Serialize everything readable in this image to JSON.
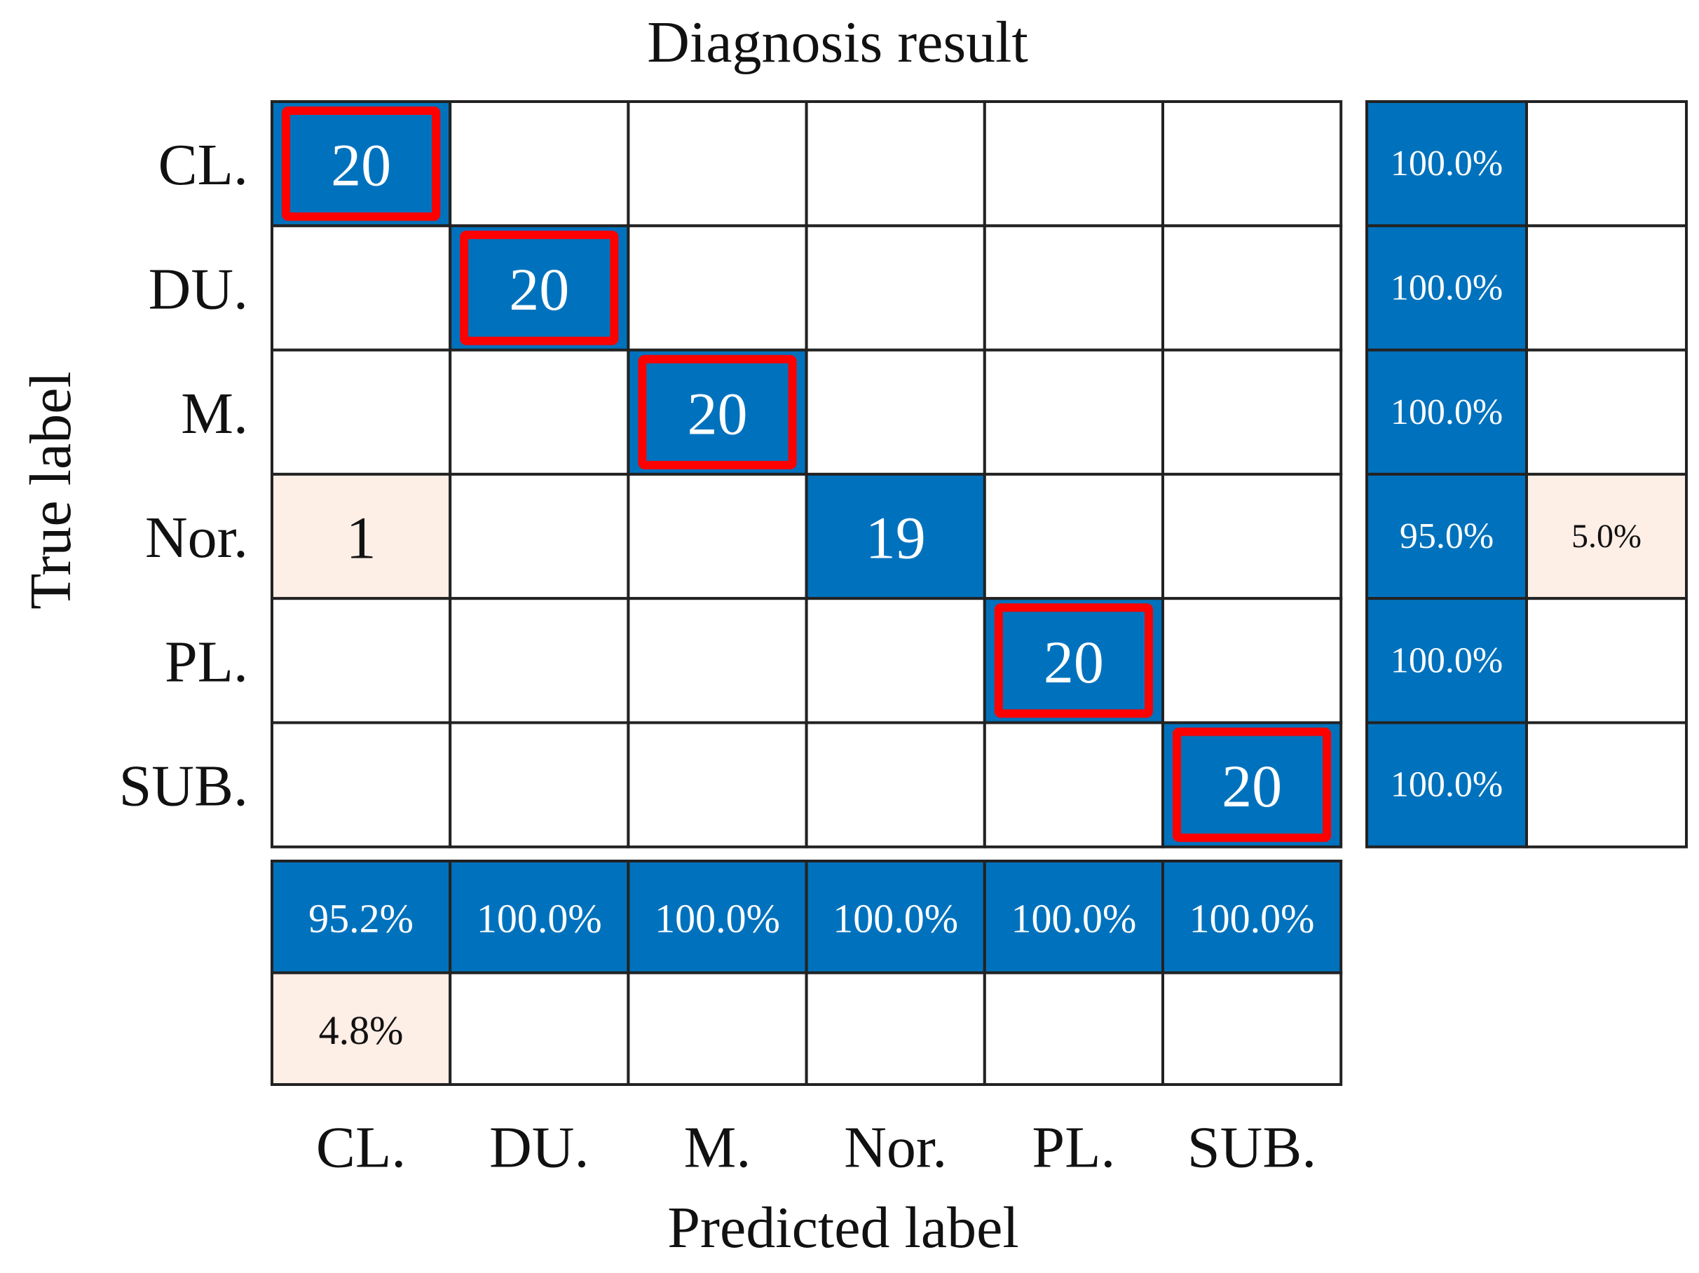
{
  "chart_data": {
    "type": "heatmap",
    "title": "Diagnosis result",
    "xlabel": "Predicted label",
    "ylabel": "True label",
    "classes": [
      "CL.",
      "DU.",
      "M.",
      "Nor.",
      "PL.",
      "SUB."
    ],
    "matrix": [
      [
        20,
        0,
        0,
        0,
        0,
        0
      ],
      [
        0,
        20,
        0,
        0,
        0,
        0
      ],
      [
        0,
        0,
        20,
        0,
        0,
        0
      ],
      [
        1,
        0,
        0,
        19,
        0,
        0
      ],
      [
        0,
        0,
        0,
        0,
        20,
        0
      ],
      [
        0,
        0,
        0,
        0,
        0,
        20
      ]
    ],
    "highlighted_diagonal": [
      "CL.",
      "DU.",
      "M.",
      "PL.",
      "SUB."
    ],
    "row_summary": [
      [
        "100.0%",
        ""
      ],
      [
        "100.0%",
        ""
      ],
      [
        "100.0%",
        ""
      ],
      [
        "95.0%",
        "5.0%"
      ],
      [
        "100.0%",
        ""
      ],
      [
        "100.0%",
        ""
      ]
    ],
    "column_summary": [
      [
        "95.2%",
        "100.0%",
        "100.0%",
        "100.0%",
        "100.0%",
        "100.0%"
      ],
      [
        "4.8%",
        "",
        "",
        "",
        "",
        ""
      ]
    ],
    "colors": {
      "correct": "#0072BD",
      "incorrect": "#FDEEE6",
      "highlight": "#FF0000",
      "grid": "#222222"
    }
  }
}
